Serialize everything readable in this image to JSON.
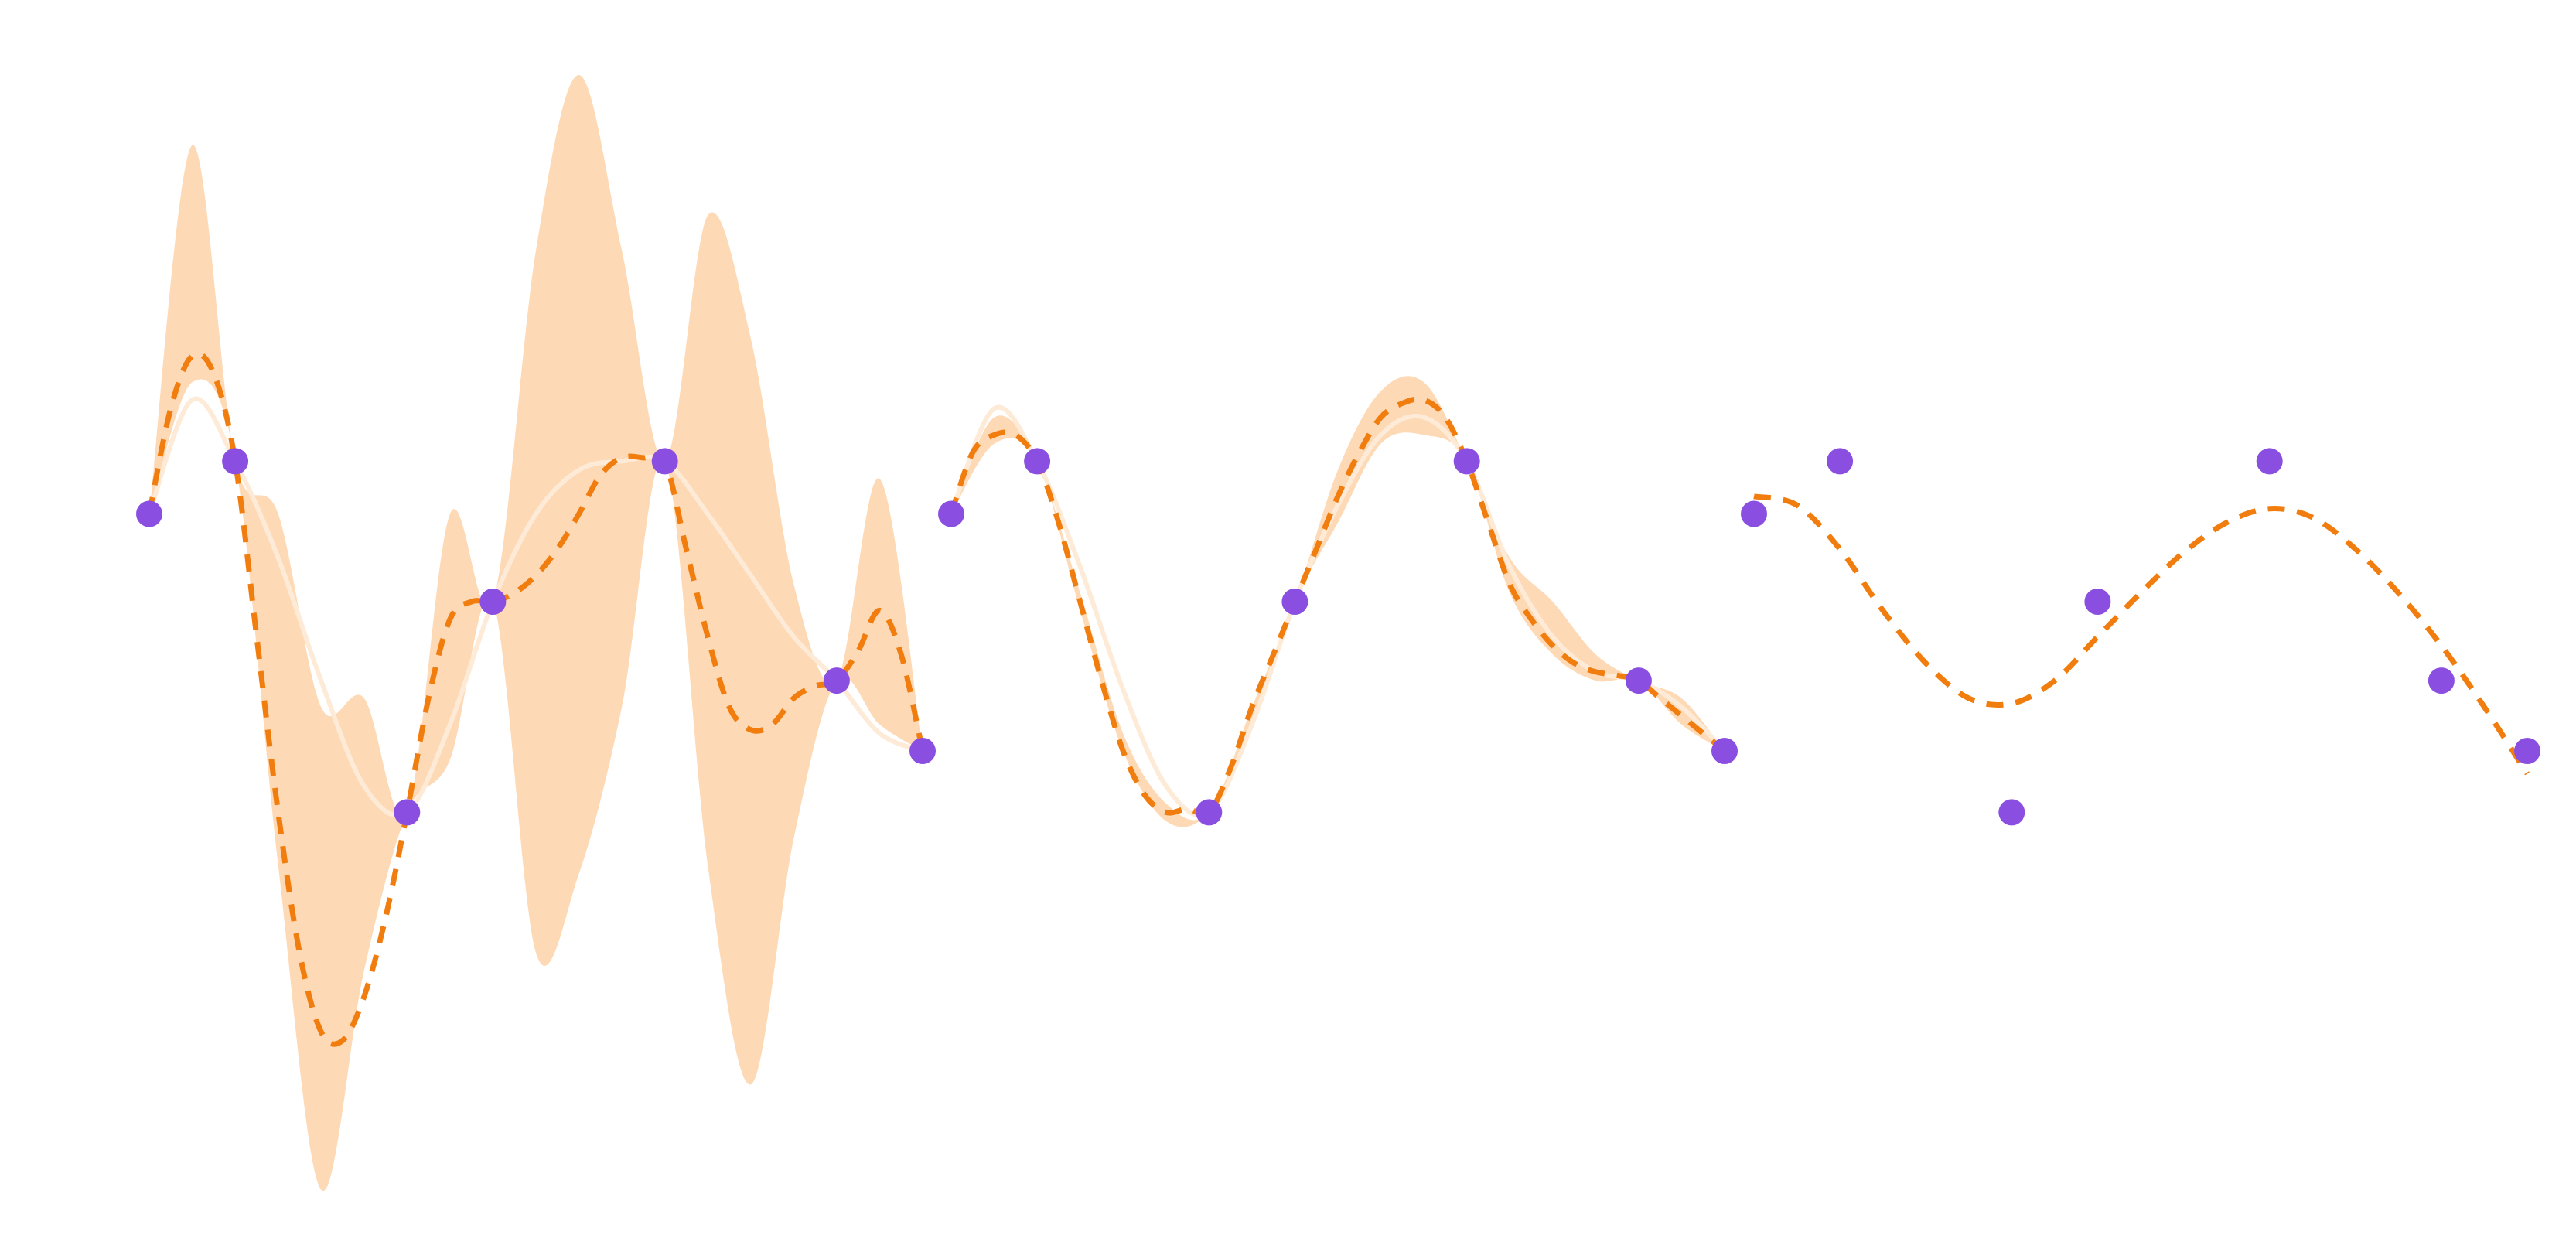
{
  "colors": {
    "band": "#fdd9b5",
    "mean": "#f07d0e",
    "truth": "#fdebd8",
    "points": "#8a4ee0",
    "background": "#ffffff"
  },
  "chart_data": [
    {
      "type": "line",
      "grid": false,
      "xlim": [
        0,
        9
      ],
      "ylim": [
        -3.4,
        3.4
      ],
      "points": {
        "x": [
          0,
          1,
          3,
          4,
          6,
          8,
          9
        ],
        "y": [
          0.5,
          0.8,
          -1.2,
          0,
          0.8,
          -0.45,
          -0.85
        ]
      },
      "truth": {
        "x": [
          0,
          0.5,
          1,
          1.5,
          2,
          2.5,
          3,
          3.5,
          4,
          4.5,
          5,
          5.5,
          6,
          6.5,
          7,
          7.5,
          8,
          8.5,
          9
        ],
        "y": [
          0.5,
          1.15,
          0.8,
          0.25,
          -0.45,
          -1.05,
          -1.2,
          -0.7,
          0,
          0.5,
          0.75,
          0.8,
          0.8,
          0.5,
          0.15,
          -0.2,
          -0.45,
          -0.75,
          -0.85
        ]
      },
      "mean": {
        "x": [
          0,
          0.25,
          0.5,
          0.75,
          1,
          1.25,
          1.5,
          1.75,
          2,
          2.25,
          2.5,
          2.75,
          3,
          3.25,
          3.5,
          3.75,
          4,
          4.25,
          4.5,
          4.75,
          5,
          5.25,
          5.5,
          5.75,
          6,
          6.25,
          6.5,
          6.75,
          7,
          7.25,
          7.5,
          7.75,
          8,
          8.25,
          8.5,
          8.75,
          9
        ],
        "y": [
          0.5,
          1.1,
          1.4,
          1.3,
          0.8,
          -0.2,
          -1.2,
          -2.0,
          -2.45,
          -2.5,
          -2.25,
          -1.8,
          -1.2,
          -0.55,
          -0.1,
          0.0,
          0.0,
          0.05,
          0.15,
          0.3,
          0.5,
          0.72,
          0.82,
          0.82,
          0.8,
          0.3,
          -0.2,
          -0.6,
          -0.73,
          -0.7,
          -0.55,
          -0.48,
          -0.45,
          -0.28,
          -0.05,
          -0.3,
          -0.85
        ]
      },
      "band": {
        "x": [
          0,
          0.5,
          1,
          1.5,
          2,
          2.5,
          3,
          3.5,
          4,
          4.5,
          5,
          5.5,
          6,
          6.5,
          7,
          7.5,
          8,
          8.5,
          9
        ],
        "lower": [
          0.5,
          1.25,
          0.8,
          -1.5,
          -3.35,
          -2.1,
          -1.2,
          -0.9,
          0,
          -2.0,
          -1.55,
          -0.6,
          0.8,
          -1.5,
          -2.75,
          -1.35,
          -0.45,
          -0.7,
          -0.85
        ],
        "upper": [
          0.5,
          2.6,
          0.8,
          0.5,
          -0.6,
          -0.55,
          -1.2,
          0.5,
          0,
          2.0,
          3.0,
          2.0,
          0.8,
          2.2,
          1.5,
          0.1,
          -0.45,
          0.7,
          -0.85
        ]
      }
    },
    {
      "type": "line",
      "grid": false,
      "xlim": [
        0,
        9
      ],
      "ylim": [
        -3.4,
        3.4
      ],
      "points": {
        "x": [
          0,
          1,
          3,
          4,
          6,
          8,
          9
        ],
        "y": [
          0.5,
          0.8,
          -1.2,
          0,
          0.8,
          -0.45,
          -0.85
        ]
      },
      "truth": {
        "x": [
          0,
          0.5,
          1,
          1.5,
          2,
          2.5,
          3,
          3.5,
          4,
          4.5,
          5,
          5.5,
          6,
          6.5,
          7,
          7.5,
          8,
          8.5,
          9
        ],
        "y": [
          0.5,
          1.1,
          0.8,
          0.2,
          -0.5,
          -1.05,
          -1.2,
          -0.7,
          0,
          0.55,
          0.95,
          1.05,
          0.8,
          0.2,
          -0.2,
          -0.4,
          -0.45,
          -0.6,
          -0.85
        ]
      },
      "mean": {
        "x": [
          0,
          0.25,
          0.5,
          0.75,
          1,
          1.25,
          1.5,
          1.75,
          2,
          2.25,
          2.5,
          2.75,
          3,
          3.25,
          3.5,
          3.75,
          4,
          4.25,
          4.5,
          4.75,
          5,
          5.25,
          5.5,
          5.75,
          6,
          6.25,
          6.5,
          6.75,
          7,
          7.25,
          7.5,
          7.75,
          8,
          8.25,
          8.5,
          8.75,
          9
        ],
        "y": [
          0.5,
          0.85,
          0.95,
          0.95,
          0.8,
          0.45,
          0.0,
          -0.45,
          -0.85,
          -1.1,
          -1.2,
          -1.18,
          -1.2,
          -0.95,
          -0.6,
          -0.3,
          0,
          0.3,
          0.6,
          0.85,
          1.05,
          1.13,
          1.15,
          1.05,
          0.8,
          0.45,
          0.1,
          -0.1,
          -0.25,
          -0.35,
          -0.4,
          -0.42,
          -0.45,
          -0.55,
          -0.65,
          -0.75,
          -0.85
        ]
      },
      "band": {
        "x": [
          0,
          0.5,
          1,
          1.5,
          2,
          2.5,
          3,
          3.5,
          4,
          4.5,
          5,
          5.5,
          6,
          6.5,
          7,
          7.5,
          8,
          8.5,
          9
        ],
        "lower": [
          0.5,
          0.9,
          0.8,
          -0.05,
          -0.85,
          -1.25,
          -1.2,
          -0.7,
          0,
          0.45,
          0.9,
          0.95,
          0.8,
          0.05,
          -0.3,
          -0.45,
          -0.45,
          -0.7,
          -0.85
        ],
        "upper": [
          0.5,
          1.05,
          0.8,
          0.05,
          -0.75,
          -1.15,
          -1.2,
          -0.6,
          0,
          0.75,
          1.2,
          1.25,
          0.8,
          0.25,
          0.0,
          -0.3,
          -0.45,
          -0.55,
          -0.85
        ]
      }
    },
    {
      "type": "line",
      "grid": false,
      "xlim": [
        0,
        9
      ],
      "ylim": [
        -3.4,
        3.4
      ],
      "points": {
        "x": [
          0,
          1,
          3,
          4,
          6,
          8,
          9
        ],
        "y": [
          0.5,
          0.8,
          -1.2,
          0,
          0.8,
          -0.45,
          -0.85
        ]
      },
      "mean": {
        "x": [
          0,
          0.5,
          1,
          1.5,
          2,
          2.5,
          3,
          3.5,
          4,
          4.5,
          5,
          5.5,
          6,
          6.5,
          7,
          7.5,
          8,
          8.5,
          9
        ],
        "y": [
          0.6,
          0.55,
          0.3,
          -0.05,
          -0.35,
          -0.55,
          -0.58,
          -0.45,
          -0.2,
          0.05,
          0.28,
          0.45,
          0.53,
          0.48,
          0.3,
          0.05,
          -0.25,
          -0.6,
          -0.98
        ]
      }
    }
  ]
}
